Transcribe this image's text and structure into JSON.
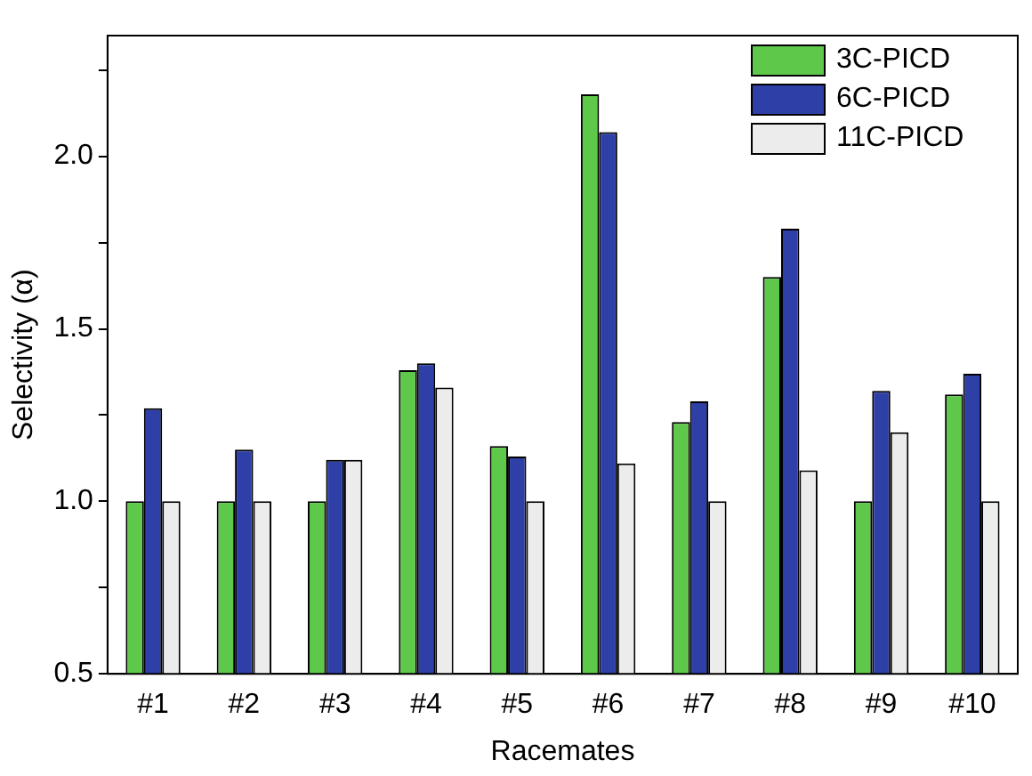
{
  "chart_data": {
    "type": "bar",
    "xlabel": "Racemates",
    "ylabel": "Selectivity (α)",
    "categories": [
      "#1",
      "#2",
      "#3",
      "#4",
      "#5",
      "#6",
      "#7",
      "#8",
      "#9",
      "#10"
    ],
    "series": [
      {
        "name": "3C-PICD",
        "color": "#5ec84a",
        "values": [
          1.0,
          1.0,
          1.0,
          1.38,
          1.16,
          2.18,
          1.23,
          1.65,
          1.0,
          1.31
        ]
      },
      {
        "name": "6C-PICD",
        "color": "#2e3fa8",
        "values": [
          1.27,
          1.15,
          1.12,
          1.4,
          1.13,
          2.07,
          1.29,
          1.79,
          1.32,
          1.37
        ]
      },
      {
        "name": "11C-PICD",
        "color": "#ececec",
        "values": [
          1.0,
          1.0,
          1.12,
          1.33,
          1.0,
          1.11,
          1.0,
          1.09,
          1.2,
          1.0
        ]
      }
    ],
    "ylim": [
      0.5,
      2.35
    ],
    "yticks": [
      0.5,
      {
        "value": 0.75,
        "label": null
      },
      {
        "value": 1,
        "label": "1.0"
      },
      {
        "value": 1.25,
        "label": null
      },
      1.5,
      {
        "value": 1.75,
        "label": null
      },
      {
        "value": 2,
        "label": "2.0"
      },
      {
        "value": 2.25,
        "label": null
      }
    ],
    "grid": false,
    "legend": "top right"
  }
}
